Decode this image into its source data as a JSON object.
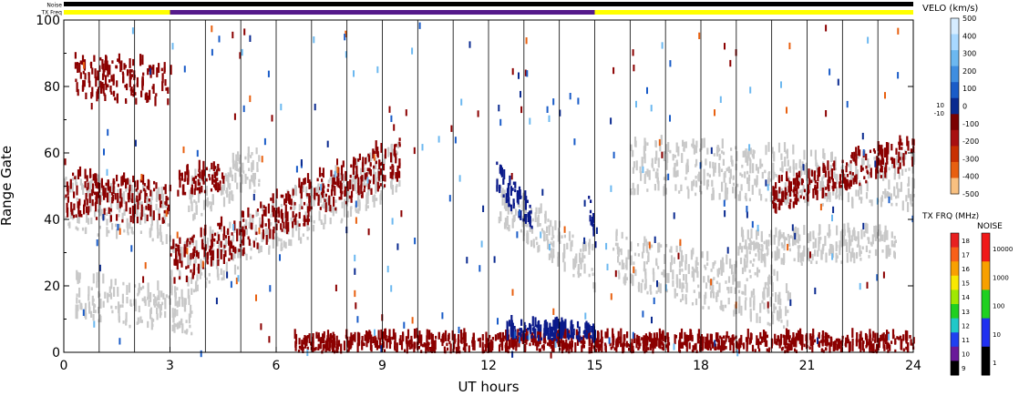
{
  "chart_data": {
    "type": "heatmap",
    "title": "",
    "xlabel": "UT hours",
    "ylabel": "Range Gate",
    "xlim": [
      0,
      24
    ],
    "ylim": [
      0,
      100
    ],
    "x_ticks": [
      0,
      3,
      6,
      9,
      12,
      15,
      18,
      21,
      24
    ],
    "y_ticks": [
      0,
      20,
      40,
      60,
      80,
      100
    ],
    "vertical_lines_ut": [
      1,
      2,
      3,
      4,
      5,
      6,
      7,
      8,
      9,
      10,
      11,
      12,
      13,
      14,
      15,
      16,
      17,
      18,
      19,
      20,
      21,
      22,
      23
    ],
    "status_bars": {
      "noise_label": "Noise",
      "txfreq_label": "TX Freq",
      "txfreq_segments": [
        {
          "start": 0,
          "end": 3,
          "color": "#ffff00"
        },
        {
          "start": 3,
          "end": 15,
          "color": "#551a8b"
        },
        {
          "start": 15,
          "end": 24,
          "color": "#ffff00"
        }
      ]
    },
    "velocity_scale": {
      "label": "VELO (km/s)",
      "ticks": [
        "500",
        "400",
        "300",
        "200",
        "100",
        "0",
        "-100",
        "-200",
        "-300",
        "-400",
        "-500"
      ],
      "near_zero_labels": [
        "10",
        "-10"
      ],
      "colors": [
        "#d6ecff",
        "#a8d8ff",
        "#6cb8f0",
        "#3f8ee0",
        "#1a5cc8",
        "#0a2a90",
        "#7a0000",
        "#a81010",
        "#c83000",
        "#e86010",
        "#f8c080"
      ]
    },
    "txfreq_scale": {
      "label": "TX FRQ (MHz)",
      "ticks": [
        "18",
        "17",
        "16",
        "15",
        "14",
        "13",
        "12",
        "11",
        "10",
        "9"
      ],
      "colors": [
        "#e82020",
        "#f86018",
        "#f8a000",
        "#f8e800",
        "#a0e800",
        "#20d020",
        "#20c8c8",
        "#2040f0",
        "#6a1a9a",
        "#000000"
      ]
    },
    "noise_scale": {
      "label": "NOISE",
      "ticks": [
        "10000",
        "1000",
        "100",
        "10",
        "1"
      ],
      "colors": [
        "#f01818",
        "#f8a000",
        "#20d020",
        "#2030f0",
        "#000000"
      ]
    },
    "series": [
      {
        "category": "ground_scatter",
        "color": "#c8c8c8",
        "segments": [
          {
            "t0": 0.0,
            "t1": 3.0,
            "g0": 44,
            "g1": 40,
            "width": 10
          },
          {
            "t0": 0.3,
            "t1": 3.6,
            "g0": 16,
            "g1": 11,
            "width": 8
          },
          {
            "t0": 3.0,
            "t1": 9.5,
            "g0": 22,
            "g1": 55,
            "width": 10
          },
          {
            "t0": 3.5,
            "t1": 5.5,
            "g0": 45,
            "g1": 55,
            "width": 8
          },
          {
            "t0": 12.2,
            "t1": 15.0,
            "g0": 45,
            "g1": 24,
            "width": 8
          },
          {
            "t0": 15.5,
            "t1": 20.5,
            "g0": 28,
            "g1": 14,
            "width": 10
          },
          {
            "t0": 16.0,
            "t1": 24.0,
            "g0": 55,
            "g1": 50,
            "width": 10
          },
          {
            "t0": 19.0,
            "t1": 23.5,
            "g0": 30,
            "g1": 32,
            "width": 6
          }
        ]
      },
      {
        "category": "negative_velocity",
        "color": "#8b0000",
        "segments": [
          {
            "t0": 0.3,
            "t1": 3.0,
            "g0": 82,
            "g1": 80,
            "width": 8
          },
          {
            "t0": 0.0,
            "t1": 3.0,
            "g0": 47,
            "g1": 44,
            "width": 8
          },
          {
            "t0": 3.0,
            "t1": 9.5,
            "g0": 25,
            "g1": 58,
            "width": 8
          },
          {
            "t0": 3.2,
            "t1": 4.5,
            "g0": 50,
            "g1": 52,
            "width": 5
          },
          {
            "t0": 6.5,
            "t1": 24.0,
            "g0": 2,
            "g1": 2,
            "width": 3
          },
          {
            "t0": 20.0,
            "t1": 24.0,
            "g0": 46,
            "g1": 60,
            "width": 6
          }
        ]
      },
      {
        "category": "positive_velocity",
        "color": "#0a1a8a",
        "segments": [
          {
            "t0": 12.2,
            "t1": 13.2,
            "g0": 52,
            "g1": 40,
            "width": 6
          },
          {
            "t0": 12.5,
            "t1": 15.0,
            "g0": 6,
            "g1": 5,
            "width": 3
          },
          {
            "t0": 14.8,
            "t1": 15.0,
            "g0": 45,
            "g1": 35,
            "width": 5
          }
        ]
      }
    ]
  }
}
